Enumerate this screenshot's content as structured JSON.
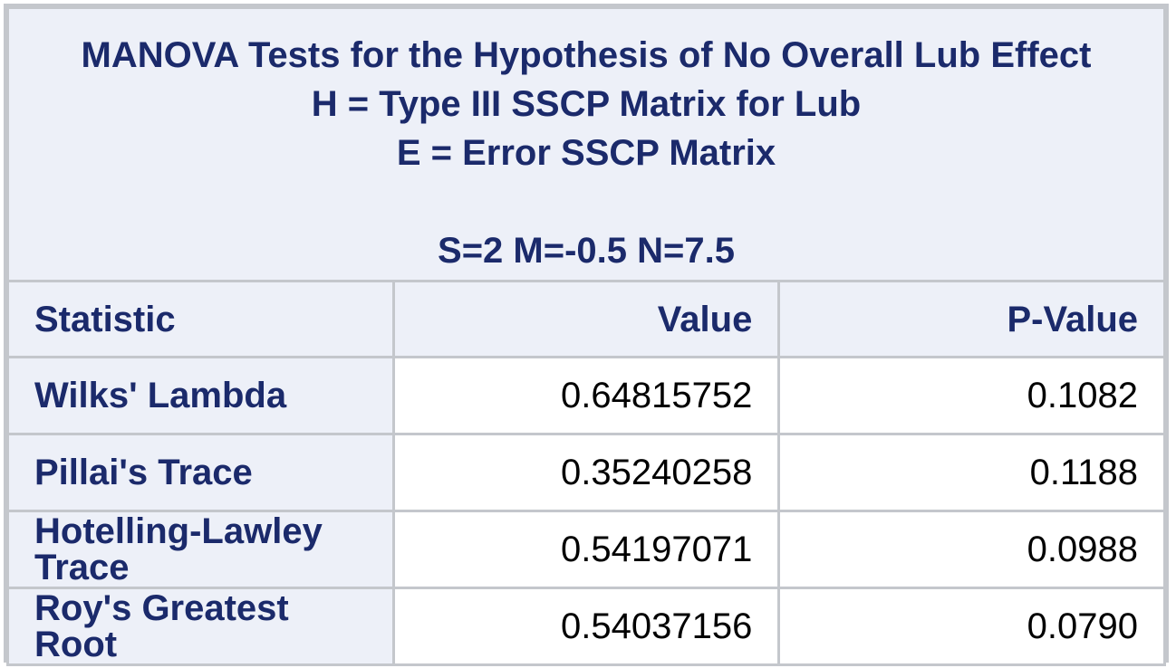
{
  "title": {
    "line1": "MANOVA Tests for the Hypothesis of No Overall Lub Effect",
    "line2": "H = Type III SSCP Matrix for Lub",
    "line3": "E = Error SSCP Matrix",
    "line4": "S=2 M=-0.5 N=7.5"
  },
  "columns": {
    "statistic": "Statistic",
    "value": "Value",
    "p_value": "P-Value"
  },
  "rows": [
    {
      "statistic": "Wilks' Lambda",
      "value": "0.64815752",
      "p_value": "0.1082"
    },
    {
      "statistic": "Pillai's Trace",
      "value": "0.35240258",
      "p_value": "0.1188"
    },
    {
      "statistic": "Hotelling-Lawley Trace",
      "value": "0.54197071",
      "p_value": "0.0988"
    },
    {
      "statistic": "Roy's Greatest Root",
      "value": "0.54037156",
      "p_value": "0.0790"
    }
  ],
  "colors": {
    "header_background": "#edf0f8",
    "header_text": "#1b2a6b",
    "grid_lines": "#c4c7cc",
    "value_text": "#000000"
  }
}
